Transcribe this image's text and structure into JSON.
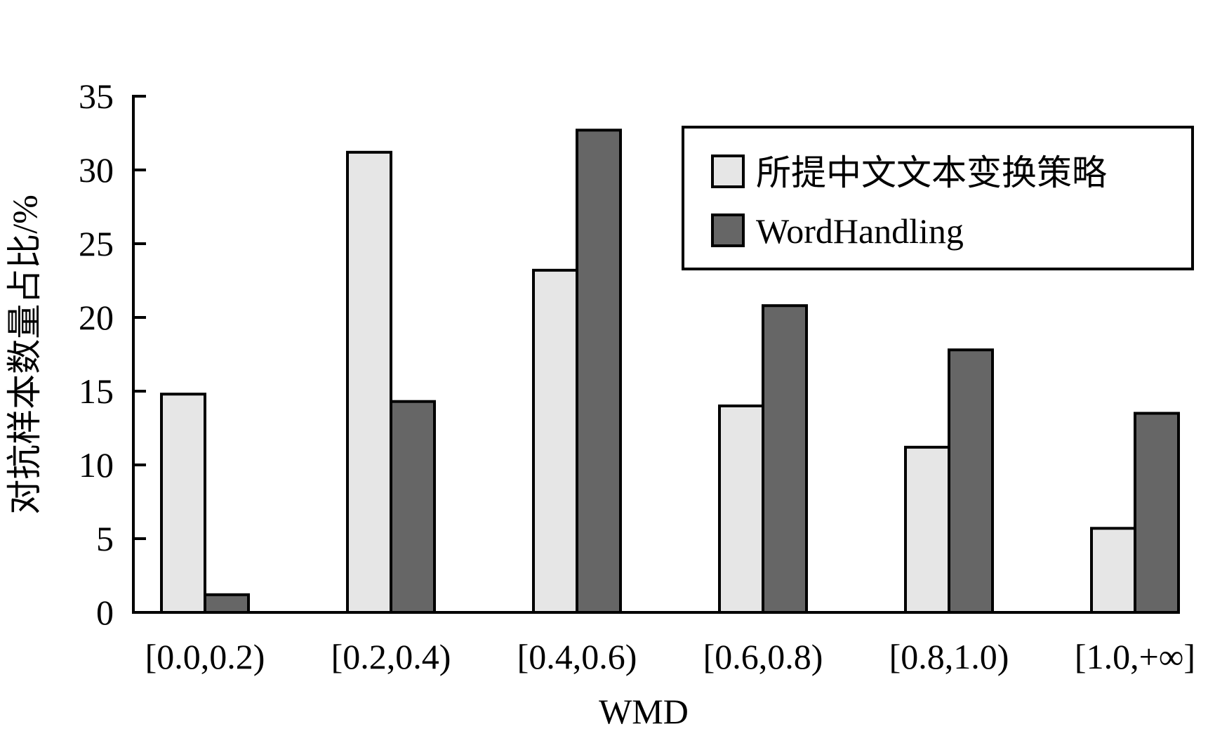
{
  "chart_data": {
    "type": "bar",
    "title": "",
    "xlabel": "WMD",
    "ylabel": "对抗样本数量占比/%",
    "ylim": [
      0,
      35
    ],
    "yticks": [
      0,
      5,
      10,
      15,
      20,
      25,
      30,
      35
    ],
    "categories": [
      "[0.0,0.2)",
      "[0.2,0.4)",
      "[0.4,0.6)",
      "[0.6,0.8)",
      "[0.8,1.0)",
      "[1.0,+∞]"
    ],
    "series": [
      {
        "name": "所提中文文本变换策略",
        "color": "#e6e6e6",
        "values": [
          14.8,
          31.2,
          23.2,
          14.0,
          11.2,
          5.7
        ]
      },
      {
        "name": "WordHandling",
        "color": "#666666",
        "values": [
          1.2,
          14.3,
          32.7,
          20.8,
          17.8,
          13.5
        ]
      }
    ],
    "grid": false,
    "legend_position": "top-right"
  }
}
